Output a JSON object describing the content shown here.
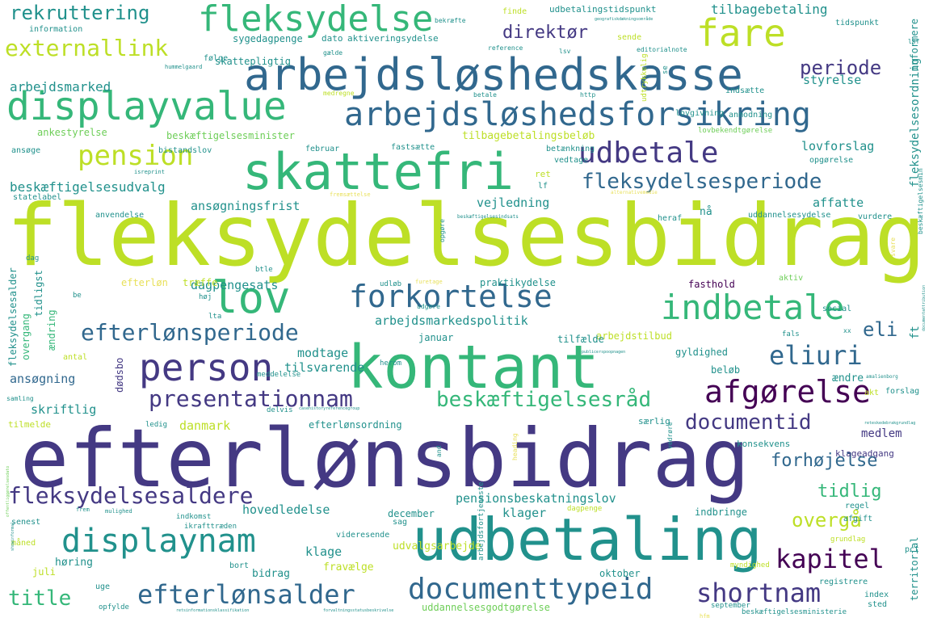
{
  "palette": {
    "lime": "#bddf26",
    "yellow": "#d6e24a",
    "green": "#35b779",
    "teal": "#21918c",
    "blue": "#31688e",
    "indigo": "#443983",
    "purple": "#440154",
    "light_green": "#6ece58",
    "pale": "#e8e05a"
  },
  "words": [
    {
      "text": "fleksydelsesbidrag",
      "weight": 100,
      "color": "lime"
    },
    {
      "text": "efterlønsbidrag",
      "weight": 96,
      "color": "indigo"
    },
    {
      "text": "kontant",
      "weight": 72,
      "color": "green"
    },
    {
      "text": "udbetaling",
      "weight": 70,
      "color": "teal"
    },
    {
      "text": "skattefri",
      "weight": 60,
      "color": "green"
    },
    {
      "text": "arbejdsløshedskasse",
      "weight": 52,
      "color": "blue"
    },
    {
      "text": "displayvalue",
      "weight": 48,
      "color": "green"
    },
    {
      "text": "lov",
      "weight": 46,
      "color": "green"
    },
    {
      "text": "fleksydelse",
      "weight": 42,
      "color": "green"
    },
    {
      "text": "fare",
      "weight": 42,
      "color": "lime"
    },
    {
      "text": "arbejdsløshedsforsikring",
      "weight": 38,
      "color": "blue"
    },
    {
      "text": "person",
      "weight": 40,
      "color": "indigo"
    },
    {
      "text": "indbetale",
      "weight": 40,
      "color": "green"
    },
    {
      "text": "forkortelse",
      "weight": 36,
      "color": "blue"
    },
    {
      "text": "displaynam",
      "weight": 38,
      "color": "teal"
    },
    {
      "text": "afgørelse",
      "weight": 36,
      "color": "purple"
    },
    {
      "text": "documenttypeid",
      "weight": 34,
      "color": "blue"
    },
    {
      "text": "udbetale",
      "weight": 34,
      "color": "indigo"
    },
    {
      "text": "pension",
      "weight": 32,
      "color": "lime"
    },
    {
      "text": "eliuri",
      "weight": 30,
      "color": "blue"
    },
    {
      "text": "efterlønsalder",
      "weight": 30,
      "color": "blue"
    },
    {
      "text": "shortnam",
      "weight": 30,
      "color": "indigo"
    },
    {
      "text": "kapitel",
      "weight": 30,
      "color": "purple"
    },
    {
      "text": "efterlønsperiode",
      "weight": 28,
      "color": "blue"
    },
    {
      "text": "presentationnam",
      "weight": 28,
      "color": "indigo"
    },
    {
      "text": "fleksydelsesaldere",
      "weight": 28,
      "color": "indigo"
    },
    {
      "text": "fleksydelsesperiode",
      "weight": 26,
      "color": "blue"
    },
    {
      "text": "externallink",
      "weight": 26,
      "color": "lime"
    },
    {
      "text": "beskæftigelsesråd",
      "weight": 24,
      "color": "green"
    },
    {
      "text": "documentid",
      "weight": 24,
      "color": "indigo"
    },
    {
      "text": "title",
      "weight": 24,
      "color": "green"
    },
    {
      "text": "rekruttering",
      "weight": 22,
      "color": "teal"
    },
    {
      "text": "periode",
      "weight": 22,
      "color": "indigo"
    },
    {
      "text": "direktør",
      "weight": 22,
      "color": "indigo"
    },
    {
      "text": "forhøjelse",
      "weight": 22,
      "color": "blue"
    },
    {
      "text": "tidlig",
      "weight": 22,
      "color": "green"
    },
    {
      "text": "overgå",
      "weight": 22,
      "color": "lime"
    },
    {
      "text": "eli",
      "weight": 22,
      "color": "blue"
    },
    {
      "text": "beskæftigelsesudvalg",
      "weight": 16,
      "color": "teal"
    },
    {
      "text": "arbejdsmarked",
      "weight": 16,
      "color": "teal"
    },
    {
      "text": "tilbagebetaling",
      "weight": 16,
      "color": "teal"
    },
    {
      "text": "lovforslag",
      "weight": 14,
      "color": "teal"
    },
    {
      "text": "styrelse",
      "weight": 14,
      "color": "teal"
    },
    {
      "text": "ansøgningsfrist",
      "weight": 14,
      "color": "teal"
    },
    {
      "text": "vejledning",
      "weight": 14,
      "color": "teal"
    },
    {
      "text": "affatte",
      "weight": 14,
      "color": "teal"
    },
    {
      "text": "arbejdsmarkedspolitik",
      "weight": 14,
      "color": "teal"
    },
    {
      "text": "pensionsbeskatningslov",
      "weight": 14,
      "color": "teal"
    },
    {
      "text": "hovedledelse",
      "weight": 14,
      "color": "teal"
    },
    {
      "text": "danmark",
      "weight": 14,
      "color": "lime"
    },
    {
      "text": "ansøgning",
      "weight": 14,
      "color": "blue"
    },
    {
      "text": "skriftlig",
      "weight": 14,
      "color": "teal"
    },
    {
      "text": "modtage",
      "weight": 14,
      "color": "teal"
    },
    {
      "text": "tilsvarende",
      "weight": 14,
      "color": "teal"
    },
    {
      "text": "dagpengesats",
      "weight": 14,
      "color": "teal"
    },
    {
      "text": "klage",
      "weight": 14,
      "color": "teal"
    },
    {
      "text": "klager",
      "weight": 14,
      "color": "teal"
    },
    {
      "text": "medlem",
      "weight": 14,
      "color": "indigo"
    },
    {
      "text": "ændre",
      "weight": 12,
      "color": "teal"
    },
    {
      "text": "bidrag",
      "weight": 12,
      "color": "teal"
    },
    {
      "text": "høring",
      "weight": 12,
      "color": "teal"
    },
    {
      "text": "fravælge",
      "weight": 12,
      "color": "lime"
    },
    {
      "text": "udvalgsarbejde",
      "weight": 12,
      "color": "lime"
    },
    {
      "text": "uddannelsesgodtgørelse",
      "weight": 11,
      "color": "light_green"
    },
    {
      "text": "efterlønsordning",
      "weight": 11,
      "color": "teal"
    },
    {
      "text": "beskæftigelsesminister",
      "weight": 11,
      "color": "light_green"
    },
    {
      "text": "tilbagebetalingsbeløb",
      "weight": 11,
      "color": "lime"
    },
    {
      "text": "udbetalingstidspunkt",
      "weight": 11,
      "color": "teal"
    },
    {
      "text": "aktiveringsydelse",
      "weight": 11,
      "color": "teal"
    },
    {
      "text": "sygedagpenge",
      "weight": 11,
      "color": "teal"
    },
    {
      "text": "skattepligtig",
      "weight": 11,
      "color": "teal"
    },
    {
      "text": "ankestyrelse",
      "weight": 11,
      "color": "light_green"
    },
    {
      "text": "praktikydelse",
      "weight": 11,
      "color": "teal"
    },
    {
      "text": "arbejdstilbud",
      "weight": 11,
      "color": "lime"
    },
    {
      "text": "fasthold",
      "weight": 11,
      "color": "purple"
    },
    {
      "text": "januar",
      "weight": 11,
      "color": "teal"
    },
    {
      "text": "tilfælde",
      "weight": 11,
      "color": "teal"
    },
    {
      "text": "gyldighed",
      "weight": 11,
      "color": "teal"
    },
    {
      "text": "beløb",
      "weight": 11,
      "color": "teal"
    },
    {
      "text": "december",
      "weight": 11,
      "color": "teal"
    },
    {
      "text": "oktober",
      "weight": 11,
      "color": "teal"
    },
    {
      "text": "juli",
      "weight": 11,
      "color": "lime"
    },
    {
      "text": "indbringe",
      "weight": 11,
      "color": "teal"
    },
    {
      "text": "klageadgang",
      "weight": 10,
      "color": "indigo"
    },
    {
      "text": "konsekvens",
      "weight": 10,
      "color": "teal"
    },
    {
      "text": "særlig",
      "weight": 10,
      "color": "teal"
    },
    {
      "text": "træffe",
      "weight": 11,
      "color": "lime"
    },
    {
      "text": "efterløn",
      "weight": 11,
      "color": "pale"
    },
    {
      "text": "dato",
      "weight": 10,
      "color": "teal"
    },
    {
      "text": "februar",
      "weight": 10,
      "color": "teal"
    },
    {
      "text": "fastsætte",
      "weight": 10,
      "color": "teal"
    },
    {
      "text": "vedtage",
      "weight": 10,
      "color": "teal"
    },
    {
      "text": "betænkning",
      "weight": 10,
      "color": "teal"
    },
    {
      "text": "uddannelsesydelse",
      "weight": 10,
      "color": "teal"
    },
    {
      "text": "anvendelse",
      "weight": 10,
      "color": "teal"
    },
    {
      "text": "ansøge",
      "weight": 10,
      "color": "teal"
    },
    {
      "text": "bistandslov",
      "weight": 10,
      "color": "teal"
    },
    {
      "text": "statelabel",
      "weight": 10,
      "color": "teal"
    },
    {
      "text": "information",
      "weight": 10,
      "color": "teal"
    },
    {
      "text": "følge",
      "weight": 10,
      "color": "teal"
    },
    {
      "text": "finde",
      "weight": 10,
      "color": "lime"
    },
    {
      "text": "sende",
      "weight": 10,
      "color": "lime"
    },
    {
      "text": "tidspunkt",
      "weight": 10,
      "color": "teal"
    },
    {
      "text": "indsætte",
      "weight": 10,
      "color": "teal"
    },
    {
      "text": "anmodning",
      "weight": 10,
      "color": "teal"
    },
    {
      "text": "lovgivning",
      "weight": 10,
      "color": "teal"
    },
    {
      "text": "opgørelse",
      "weight": 10,
      "color": "teal"
    },
    {
      "text": "lovbekendtgørelse",
      "weight": 10,
      "color": "light_green"
    },
    {
      "text": "aktiv",
      "weight": 10,
      "color": "light_green"
    },
    {
      "text": "vurdere",
      "weight": 10,
      "color": "teal"
    },
    {
      "text": "heraf",
      "weight": 10,
      "color": "teal"
    },
    {
      "text": "nå",
      "weight": 12,
      "color": "teal"
    },
    {
      "text": "social",
      "weight": 10,
      "color": "teal"
    },
    {
      "text": "forslag",
      "weight": 10,
      "color": "teal"
    },
    {
      "text": "akt",
      "weight": 10,
      "color": "lime"
    },
    {
      "text": "regel",
      "weight": 10,
      "color": "teal"
    },
    {
      "text": "afgift",
      "weight": 10,
      "color": "teal"
    },
    {
      "text": "index",
      "weight": 10,
      "color": "teal"
    },
    {
      "text": "sted",
      "weight": 10,
      "color": "teal"
    },
    {
      "text": "registrere",
      "weight": 10,
      "color": "teal"
    },
    {
      "text": "september",
      "weight": 9,
      "color": "teal"
    },
    {
      "text": "myndighed",
      "weight": 9,
      "color": "lime"
    },
    {
      "text": "pct",
      "weight": 10,
      "color": "teal"
    },
    {
      "text": "grundlag",
      "weight": 9,
      "color": "lime"
    },
    {
      "text": "videresende",
      "weight": 10,
      "color": "teal"
    },
    {
      "text": "dagpenge",
      "weight": 9,
      "color": "lime"
    },
    {
      "text": "senest",
      "weight": 10,
      "color": "teal"
    },
    {
      "text": "måned",
      "weight": 10,
      "color": "lime"
    },
    {
      "text": "indkomst",
      "weight": 9,
      "color": "teal"
    },
    {
      "text": "ikrafttræden",
      "weight": 9,
      "color": "teal"
    },
    {
      "text": "sag",
      "weight": 10,
      "color": "teal"
    },
    {
      "text": "bort",
      "weight": 10,
      "color": "teal"
    },
    {
      "text": "uge",
      "weight": 10,
      "color": "teal"
    },
    {
      "text": "opfylde",
      "weight": 9,
      "color": "teal"
    },
    {
      "text": "tilmelde",
      "weight": 10,
      "color": "lime"
    },
    {
      "text": "antal",
      "weight": 10,
      "color": "lime"
    },
    {
      "text": "samling",
      "weight": 8,
      "color": "teal"
    },
    {
      "text": "ledig",
      "weight": 9,
      "color": "teal"
    },
    {
      "text": "delvis",
      "weight": 9,
      "color": "teal"
    },
    {
      "text": "meddelelse",
      "weight": 9,
      "color": "teal"
    },
    {
      "text": "herom",
      "weight": 9,
      "color": "teal"
    },
    {
      "text": "fals",
      "weight": 9,
      "color": "teal"
    },
    {
      "text": "udløb",
      "weight": 9,
      "color": "teal"
    },
    {
      "text": "udgøre",
      "weight": 8,
      "color": "teal"
    },
    {
      "text": "ret",
      "weight": 10,
      "color": "lime"
    },
    {
      "text": "lf",
      "weight": 10,
      "color": "teal"
    },
    {
      "text": "lta",
      "weight": 9,
      "color": "teal"
    },
    {
      "text": "høj",
      "weight": 9,
      "color": "teal"
    },
    {
      "text": "be",
      "weight": 9,
      "color": "teal"
    },
    {
      "text": "btle",
      "weight": 9,
      "color": "teal"
    },
    {
      "text": "dag",
      "weight": 9,
      "color": "teal"
    },
    {
      "text": "bekræfte",
      "weight": 8,
      "color": "teal"
    },
    {
      "text": "gælde",
      "weight": 8,
      "color": "teal"
    },
    {
      "text": "reference",
      "weight": 8,
      "color": "teal"
    },
    {
      "text": "medregne",
      "weight": 8,
      "color": "lime"
    },
    {
      "text": "betale",
      "weight": 8,
      "color": "teal"
    },
    {
      "text": "http",
      "weight": 8,
      "color": "teal"
    },
    {
      "text": "editorialnote",
      "weight": 8,
      "color": "teal"
    },
    {
      "text": "lsv",
      "weight": 8,
      "color": "teal"
    },
    {
      "text": "lsf",
      "weight": 8,
      "color": "teal"
    },
    {
      "text": "hummelgaard",
      "weight": 7,
      "color": "teal"
    },
    {
      "text": "isreprint",
      "weight": 7,
      "color": "teal"
    },
    {
      "text": "fremsættelse",
      "weight": 7,
      "color": "pale"
    },
    {
      "text": "alternativemedie",
      "weight": 6,
      "color": "pale"
    },
    {
      "text": "beskæftigelsesindsats",
      "weight": 6,
      "color": "teal"
    },
    {
      "text": "furetage",
      "weight": 7,
      "color": "pale"
    },
    {
      "text": "amalienborg",
      "weight": 6,
      "color": "teal"
    },
    {
      "text": "xx",
      "weight": 8,
      "color": "teal"
    },
    {
      "text": "mulighed",
      "weight": 7,
      "color": "teal"
    },
    {
      "text": "frem",
      "weight": 7,
      "color": "teal"
    },
    {
      "text": "publicerspoopnagen",
      "weight": 5,
      "color": "teal"
    },
    {
      "text": "casehistoryreferencegroup",
      "weight": 5,
      "color": "teal"
    },
    {
      "text": "geografiskdækningsområde",
      "weight": 5,
      "color": "teal"
    },
    {
      "text": "reteskedebrakgrundlag",
      "weight": 5,
      "color": "teal"
    },
    {
      "text": "retsinformationsklassifikation",
      "weight": 5,
      "color": "teal"
    },
    {
      "text": "forvaltningsstatusbeskrivelse",
      "weight": 5,
      "color": "teal"
    },
    {
      "text": "beskæftigelsesministerie",
      "weight": 9,
      "color": "teal"
    },
    {
      "text": "hfm",
      "weight": 7,
      "color": "pale"
    },
    {
      "text": "fleksydelsesordning",
      "weight": 14,
      "color": "teal"
    },
    {
      "text": "fleksydelsesalder",
      "weight": 12,
      "color": "teal"
    },
    {
      "text": "overgang",
      "weight": 12,
      "color": "green"
    },
    {
      "text": "tidligst",
      "weight": 12,
      "color": "teal"
    },
    {
      "text": "ændring",
      "weight": 12,
      "color": "green"
    },
    {
      "text": "dødsbo",
      "weight": 12,
      "color": "indigo"
    },
    {
      "text": "informere",
      "weight": 12,
      "color": "teal"
    },
    {
      "text": "territorial",
      "weight": 12,
      "color": "teal"
    },
    {
      "text": "udtrykkelig",
      "weight": 9,
      "color": "lime"
    },
    {
      "text": "opgøre",
      "weight": 8,
      "color": "teal"
    },
    {
      "text": "arbejdsfortjeneste",
      "weight": 9,
      "color": "teal"
    },
    {
      "text": "vedrøre",
      "weight": 8,
      "color": "teal"
    },
    {
      "text": "heading",
      "weight": 8,
      "color": "pale"
    },
    {
      "text": "and",
      "weight": 8,
      "color": "teal"
    },
    {
      "text": "svare",
      "weight": 8,
      "color": "pale"
    },
    {
      "text": "ft",
      "weight": 14,
      "color": "teal"
    },
    {
      "text": "beskæftigelsesmin",
      "weight": 8,
      "color": "teal"
    },
    {
      "text": "se",
      "weight": 9,
      "color": "teal"
    },
    {
      "text": "documentattribution",
      "weight": 5,
      "color": "teal"
    },
    {
      "text": "offentliggørelsesdato",
      "weight": 5,
      "color": "light_green"
    },
    {
      "text": "showinformal",
      "weight": 5,
      "color": "teal"
    }
  ]
}
